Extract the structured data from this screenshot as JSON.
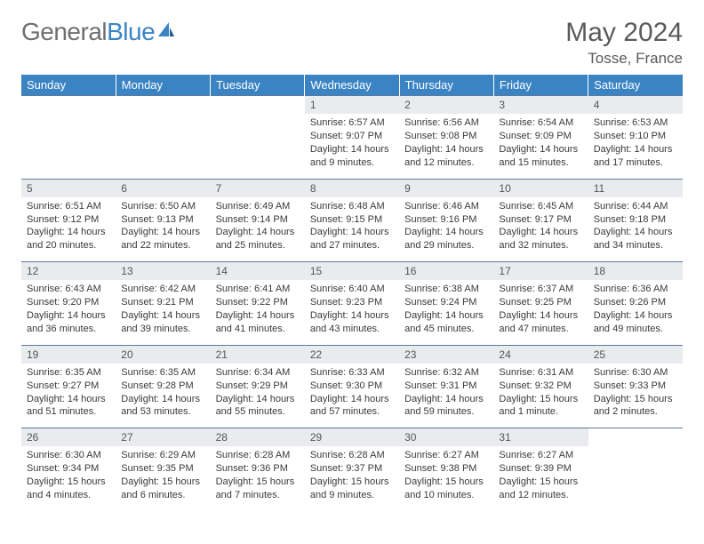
{
  "brand": {
    "part1": "General",
    "part2": "Blue"
  },
  "title": {
    "month": "May 2024",
    "location": "Tosse, France"
  },
  "colors": {
    "header_bg": "#3b84c4",
    "header_text": "#ffffff",
    "daynum_bg": "#e9ebee",
    "row_border": "#5a7aa0",
    "text": "#3a3a3a",
    "brand_gray": "#6f6f6f",
    "brand_blue": "#3b84c4",
    "page_bg": "#ffffff"
  },
  "weekdays": [
    "Sunday",
    "Monday",
    "Tuesday",
    "Wednesday",
    "Thursday",
    "Friday",
    "Saturday"
  ],
  "weeks": [
    [
      {
        "n": "",
        "lines": [
          "",
          "",
          "",
          ""
        ]
      },
      {
        "n": "",
        "lines": [
          "",
          "",
          "",
          ""
        ]
      },
      {
        "n": "",
        "lines": [
          "",
          "",
          "",
          ""
        ]
      },
      {
        "n": "1",
        "lines": [
          "Sunrise: 6:57 AM",
          "Sunset: 9:07 PM",
          "Daylight: 14 hours",
          "and 9 minutes."
        ]
      },
      {
        "n": "2",
        "lines": [
          "Sunrise: 6:56 AM",
          "Sunset: 9:08 PM",
          "Daylight: 14 hours",
          "and 12 minutes."
        ]
      },
      {
        "n": "3",
        "lines": [
          "Sunrise: 6:54 AM",
          "Sunset: 9:09 PM",
          "Daylight: 14 hours",
          "and 15 minutes."
        ]
      },
      {
        "n": "4",
        "lines": [
          "Sunrise: 6:53 AM",
          "Sunset: 9:10 PM",
          "Daylight: 14 hours",
          "and 17 minutes."
        ]
      }
    ],
    [
      {
        "n": "5",
        "lines": [
          "Sunrise: 6:51 AM",
          "Sunset: 9:12 PM",
          "Daylight: 14 hours",
          "and 20 minutes."
        ]
      },
      {
        "n": "6",
        "lines": [
          "Sunrise: 6:50 AM",
          "Sunset: 9:13 PM",
          "Daylight: 14 hours",
          "and 22 minutes."
        ]
      },
      {
        "n": "7",
        "lines": [
          "Sunrise: 6:49 AM",
          "Sunset: 9:14 PM",
          "Daylight: 14 hours",
          "and 25 minutes."
        ]
      },
      {
        "n": "8",
        "lines": [
          "Sunrise: 6:48 AM",
          "Sunset: 9:15 PM",
          "Daylight: 14 hours",
          "and 27 minutes."
        ]
      },
      {
        "n": "9",
        "lines": [
          "Sunrise: 6:46 AM",
          "Sunset: 9:16 PM",
          "Daylight: 14 hours",
          "and 29 minutes."
        ]
      },
      {
        "n": "10",
        "lines": [
          "Sunrise: 6:45 AM",
          "Sunset: 9:17 PM",
          "Daylight: 14 hours",
          "and 32 minutes."
        ]
      },
      {
        "n": "11",
        "lines": [
          "Sunrise: 6:44 AM",
          "Sunset: 9:18 PM",
          "Daylight: 14 hours",
          "and 34 minutes."
        ]
      }
    ],
    [
      {
        "n": "12",
        "lines": [
          "Sunrise: 6:43 AM",
          "Sunset: 9:20 PM",
          "Daylight: 14 hours",
          "and 36 minutes."
        ]
      },
      {
        "n": "13",
        "lines": [
          "Sunrise: 6:42 AM",
          "Sunset: 9:21 PM",
          "Daylight: 14 hours",
          "and 39 minutes."
        ]
      },
      {
        "n": "14",
        "lines": [
          "Sunrise: 6:41 AM",
          "Sunset: 9:22 PM",
          "Daylight: 14 hours",
          "and 41 minutes."
        ]
      },
      {
        "n": "15",
        "lines": [
          "Sunrise: 6:40 AM",
          "Sunset: 9:23 PM",
          "Daylight: 14 hours",
          "and 43 minutes."
        ]
      },
      {
        "n": "16",
        "lines": [
          "Sunrise: 6:38 AM",
          "Sunset: 9:24 PM",
          "Daylight: 14 hours",
          "and 45 minutes."
        ]
      },
      {
        "n": "17",
        "lines": [
          "Sunrise: 6:37 AM",
          "Sunset: 9:25 PM",
          "Daylight: 14 hours",
          "and 47 minutes."
        ]
      },
      {
        "n": "18",
        "lines": [
          "Sunrise: 6:36 AM",
          "Sunset: 9:26 PM",
          "Daylight: 14 hours",
          "and 49 minutes."
        ]
      }
    ],
    [
      {
        "n": "19",
        "lines": [
          "Sunrise: 6:35 AM",
          "Sunset: 9:27 PM",
          "Daylight: 14 hours",
          "and 51 minutes."
        ]
      },
      {
        "n": "20",
        "lines": [
          "Sunrise: 6:35 AM",
          "Sunset: 9:28 PM",
          "Daylight: 14 hours",
          "and 53 minutes."
        ]
      },
      {
        "n": "21",
        "lines": [
          "Sunrise: 6:34 AM",
          "Sunset: 9:29 PM",
          "Daylight: 14 hours",
          "and 55 minutes."
        ]
      },
      {
        "n": "22",
        "lines": [
          "Sunrise: 6:33 AM",
          "Sunset: 9:30 PM",
          "Daylight: 14 hours",
          "and 57 minutes."
        ]
      },
      {
        "n": "23",
        "lines": [
          "Sunrise: 6:32 AM",
          "Sunset: 9:31 PM",
          "Daylight: 14 hours",
          "and 59 minutes."
        ]
      },
      {
        "n": "24",
        "lines": [
          "Sunrise: 6:31 AM",
          "Sunset: 9:32 PM",
          "Daylight: 15 hours",
          "and 1 minute."
        ]
      },
      {
        "n": "25",
        "lines": [
          "Sunrise: 6:30 AM",
          "Sunset: 9:33 PM",
          "Daylight: 15 hours",
          "and 2 minutes."
        ]
      }
    ],
    [
      {
        "n": "26",
        "lines": [
          "Sunrise: 6:30 AM",
          "Sunset: 9:34 PM",
          "Daylight: 15 hours",
          "and 4 minutes."
        ]
      },
      {
        "n": "27",
        "lines": [
          "Sunrise: 6:29 AM",
          "Sunset: 9:35 PM",
          "Daylight: 15 hours",
          "and 6 minutes."
        ]
      },
      {
        "n": "28",
        "lines": [
          "Sunrise: 6:28 AM",
          "Sunset: 9:36 PM",
          "Daylight: 15 hours",
          "and 7 minutes."
        ]
      },
      {
        "n": "29",
        "lines": [
          "Sunrise: 6:28 AM",
          "Sunset: 9:37 PM",
          "Daylight: 15 hours",
          "and 9 minutes."
        ]
      },
      {
        "n": "30",
        "lines": [
          "Sunrise: 6:27 AM",
          "Sunset: 9:38 PM",
          "Daylight: 15 hours",
          "and 10 minutes."
        ]
      },
      {
        "n": "31",
        "lines": [
          "Sunrise: 6:27 AM",
          "Sunset: 9:39 PM",
          "Daylight: 15 hours",
          "and 12 minutes."
        ]
      },
      {
        "n": "",
        "lines": [
          "",
          "",
          "",
          ""
        ]
      }
    ]
  ]
}
